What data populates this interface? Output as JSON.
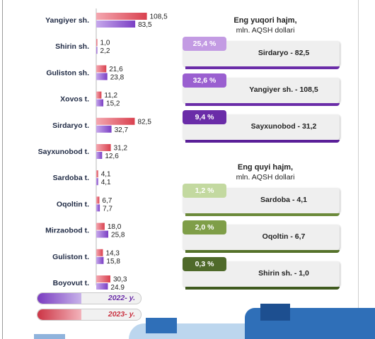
{
  "chart_data": {
    "type": "bar",
    "orientation": "horizontal",
    "categories": [
      "Yangiyer sh.",
      "Shirin sh.",
      "Guliston sh.",
      "Xovos t.",
      "Sirdaryo t.",
      "Sayxunobod t.",
      "Sardoba t.",
      "Oqoltin t.",
      "Mirzaobod t.",
      "Guliston t.",
      "Boyovut t."
    ],
    "series": [
      {
        "name": "2023- y.",
        "values": [
          108.5,
          1.0,
          21.6,
          11.2,
          82.5,
          31.2,
          4.1,
          6.7,
          18.0,
          14.3,
          30.3
        ],
        "labels": [
          "108,5",
          "1,0",
          "21,6",
          "11,2",
          "82,5",
          "31,2",
          "4,1",
          "6,7",
          "18,0",
          "14,3",
          "30,3"
        ],
        "color": "#d9414f"
      },
      {
        "name": "2022- y.",
        "values": [
          83.5,
          2.2,
          23.8,
          15.2,
          32.7,
          12.6,
          4.1,
          7.7,
          25.8,
          15.8,
          24.9
        ],
        "labels": [
          "83,5",
          "2,2",
          "23,8",
          "15,2",
          "32,7",
          "12,6",
          "4,1",
          "7,7",
          "25,8",
          "15,8",
          "24,9"
        ],
        "color": "#7b3fc4"
      }
    ],
    "legend": [
      "2022- y.",
      "2023- y."
    ],
    "legend_position": "bottom-left"
  },
  "top": {
    "title_bold": "Eng yuqori hajm,",
    "title_unit": "mln. AQSH dollari",
    "cards": [
      {
        "pct": "25,4 %",
        "text": "Sirdaryo - 82,5",
        "share": 25.4,
        "color": "#c39be3",
        "line": "#6a2ca8"
      },
      {
        "pct": "32,6 %",
        "text": "Yangiyer sh. - 108,5",
        "share": 32.6,
        "color": "#9a5fd0",
        "line": "#6a2ca8"
      },
      {
        "pct": "9,4 %",
        "text": "Sayxunobod - 31,2",
        "share": 9.4,
        "color": "#6a2ca8",
        "line": "#5a1f98"
      }
    ]
  },
  "bottom": {
    "title_bold": "Eng quyi hajm,",
    "title_unit": "mln. AQSH dollari",
    "cards": [
      {
        "pct": "1,2 %",
        "text": "Sardoba - 4,1",
        "share": 1.2,
        "color": "#c3d9a0",
        "line": "#6b8a3a"
      },
      {
        "pct": "2,0 %",
        "text": "Oqoltin - 6,7",
        "share": 2.0,
        "color": "#7f9e48",
        "line": "#55722a"
      },
      {
        "pct": "0,3 %",
        "text": "Shirin sh. - 1,0",
        "share": 0.3,
        "color": "#4f6a2a",
        "line": "#3f5a1f"
      }
    ]
  }
}
